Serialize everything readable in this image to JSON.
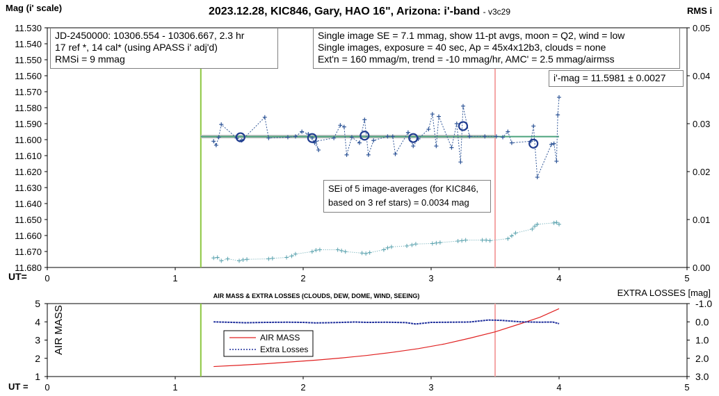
{
  "title": {
    "main": "2023.12.28, KIC846, Gary, HAO 16\", Arizona: i'-band",
    "version": "- v3c29"
  },
  "info_boxes": {
    "left": [
      "JD-2450000: 10306.554 - 10306.667, 2.3  hr",
      "17 ref *, 14 cal* (using APASS i' adj'd)",
      "RMSi = 9 mmag"
    ],
    "right": [
      "Single image SE = 7.1 mmag, show 11-pt avgs, moon = Q2, wind = low",
      "Single images, exposure = 40 sec, Ap = 45x4x12b3, clouds = none",
      "Ext'n = 160 mmag/m, trend = -10 mmag/hr, AMC' = 2.5 mmag/airmss"
    ],
    "mag": "i'-mag = 11.5981 ± 0.0027",
    "sei": [
      "SEi of 5 image-averages (for KIC846,",
      "based on 3 ref stars) = 0.0034 mag"
    ]
  },
  "colors": {
    "photometry": "#2e5597",
    "rms": "#5aa2ae",
    "average_line": "#4ba37c",
    "start_line": "#8cc63f",
    "end_line": "#f4a6a6",
    "air_mass": "#e02020",
    "extra_losses": "#1f2f9c"
  },
  "chart_data": [
    {
      "type": "scatter",
      "ylabel": "Mag (i' scale)",
      "y2label": "RMS i",
      "xlabel": "UT=",
      "ylim": [
        11.53,
        11.68
      ],
      "y_reversed": true,
      "y_ticks": [
        "11.530",
        "11.540",
        "11.550",
        "11.560",
        "11.570",
        "11.580",
        "11.590",
        "11.600",
        "11.610",
        "11.620",
        "11.630",
        "11.640",
        "11.650",
        "11.660",
        "11.670",
        "11.680"
      ],
      "y2lim": [
        0.0,
        0.05
      ],
      "y2_ticks": [
        "0.05",
        "0.04",
        "0.03",
        "0.02",
        "0.01",
        "0.00"
      ],
      "xlim": [
        0,
        5
      ],
      "x_ticks": [
        "0",
        "1",
        "2",
        "3",
        "4",
        "5"
      ],
      "start_ut": 1.2,
      "end_ut": 3.5,
      "average_mag": 11.5981,
      "series": [
        {
          "values": [
            [
              1.3,
              11.601
            ],
            [
              1.32,
              11.6035
            ],
            [
              1.34,
              11.5985
            ],
            [
              1.36,
              11.5905
            ],
            [
              1.48,
              11.599
            ],
            [
              1.52,
              11.6005
            ],
            [
              1.7,
              11.586
            ],
            [
              1.73,
              11.599
            ],
            [
              1.88,
              11.5985
            ],
            [
              1.94,
              11.598
            ],
            [
              1.99,
              11.595
            ],
            [
              2.04,
              11.5965
            ],
            [
              2.07,
              11.599
            ],
            [
              2.09,
              11.602
            ],
            [
              2.12,
              11.6065
            ],
            [
              2.1,
              11.601
            ],
            [
              2.24,
              11.599
            ],
            [
              2.29,
              11.591
            ],
            [
              2.32,
              11.592
            ],
            [
              2.34,
              11.6095
            ],
            [
              2.38,
              11.5985
            ],
            [
              2.44,
              11.602
            ],
            [
              2.48,
              11.5875
            ],
            [
              2.51,
              11.6095
            ],
            [
              2.55,
              11.6005
            ],
            [
              2.66,
              11.598
            ],
            [
              2.7,
              11.598
            ],
            [
              2.72,
              11.609
            ],
            [
              2.82,
              11.5955
            ],
            [
              2.86,
              11.604
            ],
            [
              2.9,
              11.5995
            ],
            [
              2.98,
              11.5935
            ],
            [
              3.01,
              11.584
            ],
            [
              3.04,
              11.604
            ],
            [
              3.06,
              11.5855
            ],
            [
              3.16,
              11.605
            ],
            [
              3.2,
              11.59
            ],
            [
              3.23,
              11.614
            ],
            [
              3.25,
              11.579
            ],
            [
              3.3,
              11.598
            ],
            [
              3.42,
              11.598
            ],
            [
              3.51,
              11.598
            ],
            [
              3.56,
              11.5985
            ],
            [
              3.6,
              11.595
            ],
            [
              3.63,
              11.602
            ],
            [
              3.78,
              11.601
            ],
            [
              3.8,
              11.5915
            ],
            [
              3.83,
              11.6235
            ],
            [
              3.94,
              11.603
            ],
            [
              3.96,
              11.6025
            ],
            [
              3.98,
              11.6135
            ],
            [
              3.99,
              11.5845
            ],
            [
              4.0,
              11.5735
            ]
          ]
        },
        {
          "values": [
            [
              1.51,
              11.5985
            ],
            [
              2.07,
              11.599
            ],
            [
              2.48,
              11.5975
            ],
            [
              2.86,
              11.599
            ],
            [
              3.25,
              11.5915
            ],
            [
              3.8,
              11.6025
            ]
          ]
        },
        {
          "values": [
            [
              1.3,
              0.002
            ],
            [
              1.33,
              0.0021
            ],
            [
              1.36,
              0.0014
            ],
            [
              1.41,
              0.0018
            ],
            [
              1.5,
              0.0014
            ],
            [
              1.53,
              0.0016
            ],
            [
              1.56,
              0.0017
            ],
            [
              1.73,
              0.0018
            ],
            [
              1.76,
              0.0019
            ],
            [
              1.87,
              0.0021
            ],
            [
              1.91,
              0.0024
            ],
            [
              1.94,
              0.0028
            ],
            [
              2.07,
              0.0033
            ],
            [
              2.1,
              0.0036
            ],
            [
              2.13,
              0.0037
            ],
            [
              2.27,
              0.0037
            ],
            [
              2.3,
              0.0035
            ],
            [
              2.33,
              0.0033
            ],
            [
              2.46,
              0.003
            ],
            [
              2.49,
              0.0029
            ],
            [
              2.52,
              0.0031
            ],
            [
              2.63,
              0.0037
            ],
            [
              2.66,
              0.0041
            ],
            [
              2.69,
              0.0043
            ],
            [
              2.81,
              0.0045
            ],
            [
              2.85,
              0.0047
            ],
            [
              2.88,
              0.0049
            ],
            [
              3.01,
              0.005
            ],
            [
              3.04,
              0.0051
            ],
            [
              3.07,
              0.0052
            ],
            [
              3.21,
              0.0055
            ],
            [
              3.24,
              0.0056
            ],
            [
              3.27,
              0.0057
            ],
            [
              3.4,
              0.0057
            ],
            [
              3.43,
              0.0057
            ],
            [
              3.46,
              0.0056
            ],
            [
              3.6,
              0.006
            ],
            [
              3.63,
              0.0066
            ],
            [
              3.66,
              0.0072
            ],
            [
              3.79,
              0.008
            ],
            [
              3.81,
              0.0086
            ],
            [
              3.83,
              0.009
            ],
            [
              3.96,
              0.0093
            ],
            [
              3.98,
              0.0094
            ],
            [
              4.0,
              0.009
            ]
          ]
        }
      ]
    },
    {
      "type": "line",
      "title": "AIR MASS & EXTRA LOSSES (CLOUDS, DEW, DOME, WIND, SEEING)",
      "ylabel": "AIR MASS",
      "y2label": "EXTRA LOSSES [mag]",
      "xlabel": "UT =",
      "ylim": [
        1,
        5
      ],
      "y_ticks": [
        "5",
        "4",
        "3",
        "2",
        "1"
      ],
      "y2lim": [
        -1.0,
        3.0
      ],
      "y2_reversed": true,
      "y2_ticks": [
        "-1.0",
        "0.0",
        "1.0",
        "2.0",
        "3.0"
      ],
      "xlim": [
        0,
        5
      ],
      "x_ticks": [
        "0",
        "1",
        "2",
        "3",
        "4",
        "5"
      ],
      "start_ut": 1.2,
      "end_ut": 3.5,
      "legend_position": "lower-left",
      "series": [
        {
          "name": "AIR MASS",
          "values": [
            [
              1.3,
              1.55
            ],
            [
              1.5,
              1.62
            ],
            [
              1.7,
              1.7
            ],
            [
              1.9,
              1.8
            ],
            [
              2.1,
              1.9
            ],
            [
              2.3,
              2.02
            ],
            [
              2.5,
              2.16
            ],
            [
              2.7,
              2.33
            ],
            [
              2.9,
              2.53
            ],
            [
              3.1,
              2.78
            ],
            [
              3.3,
              3.1
            ],
            [
              3.5,
              3.45
            ],
            [
              3.7,
              3.9
            ],
            [
              3.85,
              4.25
            ],
            [
              4.0,
              4.72
            ]
          ]
        },
        {
          "name": "Extra Losses",
          "values": [
            [
              1.3,
              0.0
            ],
            [
              1.4,
              0.02
            ],
            [
              1.55,
              0.05
            ],
            [
              1.7,
              0.03
            ],
            [
              1.88,
              0.02
            ],
            [
              2.0,
              0.03
            ],
            [
              2.1,
              0.06
            ],
            [
              2.25,
              0.04
            ],
            [
              2.4,
              0.01
            ],
            [
              2.5,
              0.03
            ],
            [
              2.65,
              0.02
            ],
            [
              2.8,
              0.04
            ],
            [
              2.88,
              0.12
            ],
            [
              3.0,
              0.03
            ],
            [
              3.15,
              0.02
            ],
            [
              3.3,
              0.01
            ],
            [
              3.45,
              -0.1
            ],
            [
              3.55,
              -0.08
            ],
            [
              3.7,
              0.0
            ],
            [
              3.85,
              0.02
            ],
            [
              3.95,
              0.01
            ],
            [
              4.0,
              0.1
            ]
          ]
        }
      ]
    }
  ]
}
